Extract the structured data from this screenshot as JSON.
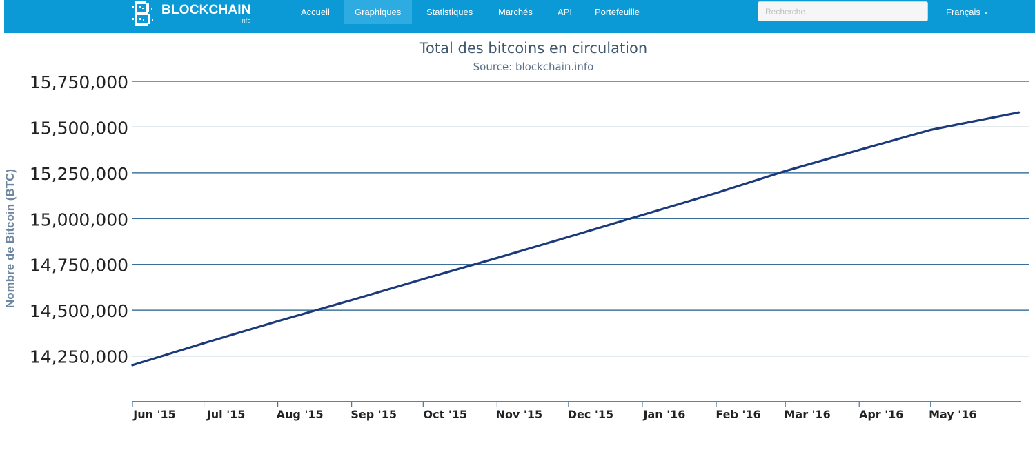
{
  "nav": {
    "logo_text": "BLOCKCHAIN",
    "logo_sub": "info",
    "items": [
      {
        "label": "Accueil",
        "active": false
      },
      {
        "label": "Graphiques",
        "active": true
      },
      {
        "label": "Statistiques",
        "active": false
      },
      {
        "label": "Marchés",
        "active": false
      },
      {
        "label": "API",
        "active": false
      },
      {
        "label": "Portefeuille",
        "active": false
      }
    ],
    "search_placeholder": "Recherche",
    "language": "Français"
  },
  "colors": {
    "navbar": "#0b9ad6",
    "nav_active": "#2eabe0",
    "series_line": "#1b3a7a",
    "grid": "#1f5a8c",
    "title": "#3e576f",
    "ylabel": "#6d87a0"
  },
  "chart_data": {
    "type": "line",
    "title": "Total des bitcoins en circulation",
    "subtitle": "Source: blockchain.info",
    "xlabel": "",
    "ylabel": "Nombre de Bitcoin (BTC)",
    "x_range": [
      "2015-06-01",
      "2016-06-08"
    ],
    "ylim": [
      14000000,
      15750000
    ],
    "y_ticks": [
      {
        "value": 14250000,
        "label": "14,250,000"
      },
      {
        "value": 14500000,
        "label": "14,500,000"
      },
      {
        "value": 14750000,
        "label": "14,750,000"
      },
      {
        "value": 15000000,
        "label": "15,000,000"
      },
      {
        "value": 15250000,
        "label": "15,250,000"
      },
      {
        "value": 15500000,
        "label": "15,500,000"
      },
      {
        "value": 15750000,
        "label": "15,750,000"
      }
    ],
    "x_ticks": [
      {
        "date": "2015-06-01",
        "label": "Jun '15"
      },
      {
        "date": "2015-07-01",
        "label": "Jul '15"
      },
      {
        "date": "2015-08-01",
        "label": "Aug '15"
      },
      {
        "date": "2015-09-01",
        "label": "Sep '15"
      },
      {
        "date": "2015-10-01",
        "label": "Oct '15"
      },
      {
        "date": "2015-11-01",
        "label": "Nov '15"
      },
      {
        "date": "2015-12-01",
        "label": "Dec '15"
      },
      {
        "date": "2016-01-01",
        "label": "Jan '16"
      },
      {
        "date": "2016-02-01",
        "label": "Feb '16"
      },
      {
        "date": "2016-03-01",
        "label": "Mar '16"
      },
      {
        "date": "2016-04-01",
        "label": "Apr '16"
      },
      {
        "date": "2016-05-01",
        "label": "May '16"
      }
    ],
    "grid": true,
    "legend": "none",
    "series": [
      {
        "x": [
          "2015-06-01",
          "2015-07-01",
          "2015-08-01",
          "2015-09-01",
          "2015-10-01",
          "2015-11-01",
          "2015-12-01",
          "2016-01-01",
          "2016-02-01",
          "2016-03-01",
          "2016-04-01",
          "2016-05-01",
          "2016-06-07"
        ],
        "y": [
          14200000,
          14320000,
          14440000,
          14555000,
          14670000,
          14785000,
          14900000,
          15020000,
          15140000,
          15260000,
          15375000,
          15485000,
          15580000
        ]
      }
    ]
  }
}
